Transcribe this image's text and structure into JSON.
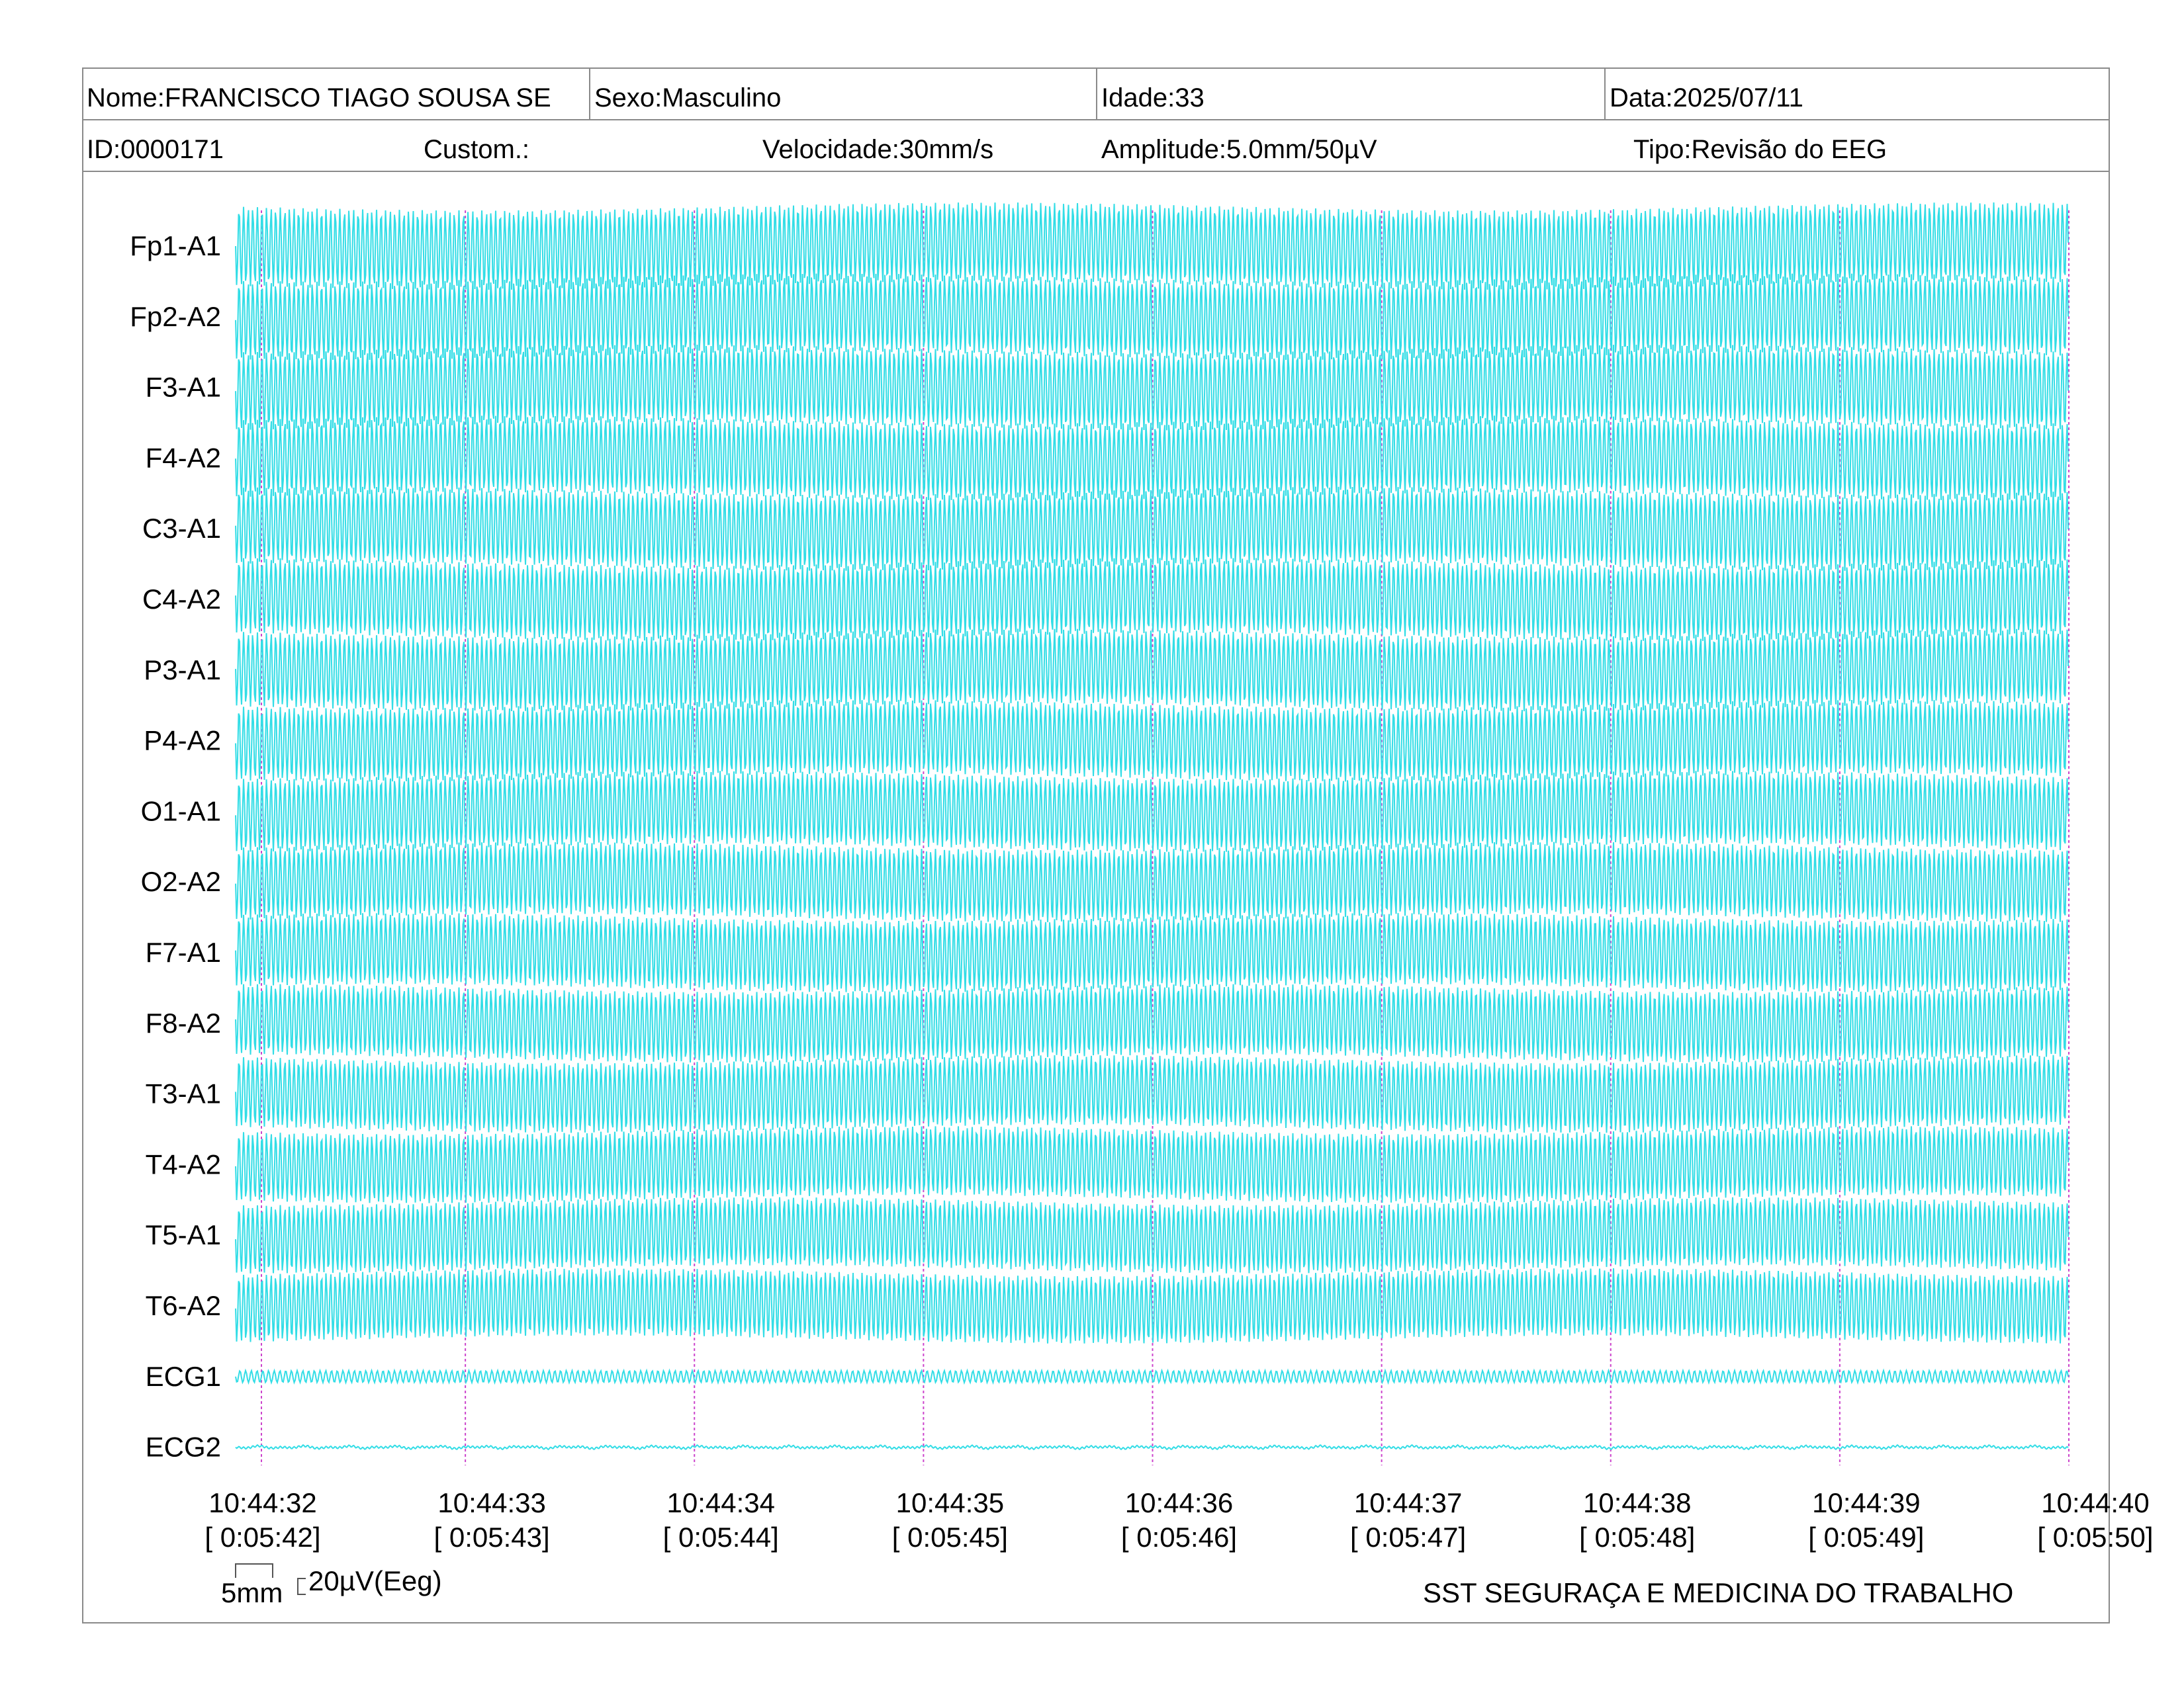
{
  "header": {
    "name": "Nome:FRANCISCO TIAGO SOUSA SE",
    "sex": "Sexo:Masculino",
    "age": "Idade:33",
    "date": "Data:2025/07/11",
    "id": "ID:0000171",
    "custom": "Custom.:",
    "speed": "Velocidade:30mm/s",
    "amplitude": "Amplitude:5.0mm/50µV",
    "type": "Tipo:Revisão do EEG"
  },
  "scale_bar": {
    "length_label": "5mm",
    "amplitude_label": "20µV(Eeg)"
  },
  "footer": {
    "organization": "SST SEGURAÇA E MEDICINA DO TRABALHO"
  },
  "colors": {
    "trace": "#33dde6",
    "marker": "#cc44cc",
    "border": "#8a8a8a"
  },
  "chart_data": {
    "type": "line",
    "channels": [
      "Fp1-A1",
      "Fp2-A2",
      "F3-A1",
      "F4-A2",
      "C3-A1",
      "C4-A2",
      "P3-A1",
      "P4-A2",
      "O1-A1",
      "O2-A2",
      "F7-A1",
      "F8-A2",
      "T3-A1",
      "T4-A2",
      "T5-A1",
      "T6-A2",
      "ECG1",
      "ECG2"
    ],
    "time_ticks": [
      {
        "time": "10:44:32",
        "elapsed": "[ 0:05:42]"
      },
      {
        "time": "10:44:33",
        "elapsed": "[ 0:05:43]"
      },
      {
        "time": "10:44:34",
        "elapsed": "[ 0:05:44]"
      },
      {
        "time": "10:44:35",
        "elapsed": "[ 0:05:45]"
      },
      {
        "time": "10:44:36",
        "elapsed": "[ 0:05:46]"
      },
      {
        "time": "10:44:37",
        "elapsed": "[ 0:05:47]"
      },
      {
        "time": "10:44:38",
        "elapsed": "[ 0:05:48]"
      },
      {
        "time": "10:44:39",
        "elapsed": "[ 0:05:49]"
      },
      {
        "time": "10:44:40",
        "elapsed": "[ 0:05:50]"
      }
    ],
    "eeg_dominant_frequency_hz": 50,
    "grid": false
  }
}
